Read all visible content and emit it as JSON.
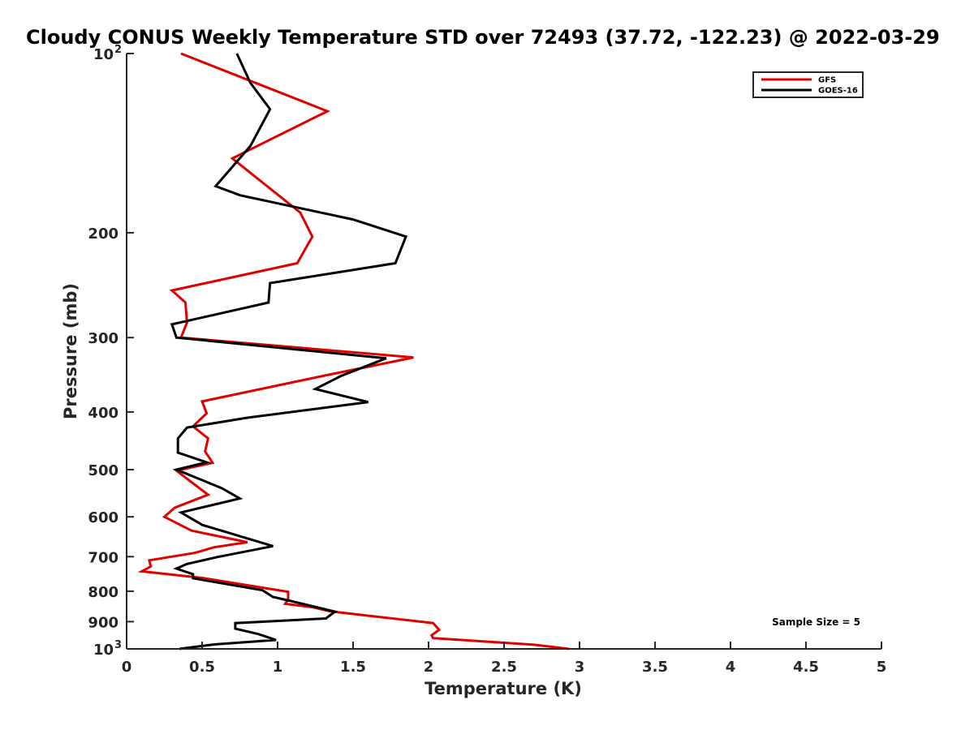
{
  "chart_data": {
    "type": "line",
    "title": "Cloudy CONUS Weekly Temperature STD over 72493 (37.72, -122.23) @ 2022-03-29",
    "xlabel": "Temperature (K)",
    "ylabel": "Pressure (mb)",
    "xlim": [
      0,
      5
    ],
    "ylim": [
      100,
      1000
    ],
    "yscale": "log",
    "y_reversed": true,
    "grid": false,
    "legend_position": "top-right",
    "x_ticks": [
      {
        "value": 0,
        "label": "0"
      },
      {
        "value": 0.5,
        "label": "0.5"
      },
      {
        "value": 1,
        "label": "1"
      },
      {
        "value": 1.5,
        "label": "1.5"
      },
      {
        "value": 2,
        "label": "2"
      },
      {
        "value": 2.5,
        "label": "2.5"
      },
      {
        "value": 3,
        "label": "3"
      },
      {
        "value": 3.5,
        "label": "3.5"
      },
      {
        "value": 4,
        "label": "4"
      },
      {
        "value": 4.5,
        "label": "4.5"
      },
      {
        "value": 5,
        "label": "5"
      }
    ],
    "y_ticks": [
      {
        "value": 100,
        "label": "10",
        "sup": "2"
      },
      {
        "value": 200,
        "label": "200"
      },
      {
        "value": 300,
        "label": "300"
      },
      {
        "value": 400,
        "label": "400"
      },
      {
        "value": 500,
        "label": "500"
      },
      {
        "value": 600,
        "label": "600"
      },
      {
        "value": 700,
        "label": "700"
      },
      {
        "value": 800,
        "label": "800"
      },
      {
        "value": 900,
        "label": "900"
      },
      {
        "value": 1000,
        "label": "10",
        "sup": "3"
      }
    ],
    "series": [
      {
        "name": "GFS",
        "color": "#e00000",
        "points": [
          [
            0.36,
            100
          ],
          [
            1.33,
            125
          ],
          [
            0.7,
            150
          ],
          [
            1.15,
            185
          ],
          [
            1.23,
            203
          ],
          [
            1.13,
            225
          ],
          [
            0.3,
            250
          ],
          [
            0.39,
            262
          ],
          [
            0.4,
            283
          ],
          [
            0.36,
            300
          ],
          [
            1.9,
            324
          ],
          [
            1.3,
            348
          ],
          [
            0.5,
            384
          ],
          [
            0.53,
            402
          ],
          [
            0.44,
            423
          ],
          [
            0.54,
            443
          ],
          [
            0.52,
            466
          ],
          [
            0.57,
            487
          ],
          [
            0.33,
            502
          ],
          [
            0.54,
            551
          ],
          [
            0.32,
            579
          ],
          [
            0.25,
            600
          ],
          [
            0.43,
            633
          ],
          [
            0.8,
            662
          ],
          [
            0.58,
            675
          ],
          [
            0.45,
            690
          ],
          [
            0.15,
            710
          ],
          [
            0.16,
            727
          ],
          [
            0.1,
            741
          ],
          [
            0.5,
            760
          ],
          [
            1.07,
            802
          ],
          [
            1.07,
            825
          ],
          [
            1.05,
            840
          ],
          [
            1.23,
            851
          ],
          [
            1.35,
            865
          ],
          [
            2.03,
            905
          ],
          [
            2.07,
            929
          ],
          [
            2.02,
            949
          ],
          [
            2.03,
            959
          ],
          [
            2.7,
            984
          ],
          [
            2.93,
            1000
          ]
        ]
      },
      {
        "name": "GOES-16",
        "color": "#000000",
        "points": [
          [
            0.73,
            100
          ],
          [
            0.82,
            112
          ],
          [
            0.95,
            124
          ],
          [
            0.82,
            143
          ],
          [
            0.59,
            167
          ],
          [
            0.75,
            173
          ],
          [
            1.5,
            190
          ],
          [
            1.85,
            203
          ],
          [
            1.78,
            225
          ],
          [
            0.95,
            243
          ],
          [
            0.94,
            262
          ],
          [
            0.3,
            285
          ],
          [
            0.33,
            300
          ],
          [
            1.72,
            325
          ],
          [
            1.42,
            348
          ],
          [
            1.25,
            366
          ],
          [
            1.6,
            385
          ],
          [
            0.8,
            409
          ],
          [
            0.4,
            425
          ],
          [
            0.34,
            443
          ],
          [
            0.34,
            468
          ],
          [
            0.53,
            486
          ],
          [
            0.33,
            500
          ],
          [
            0.63,
            537
          ],
          [
            0.75,
            559
          ],
          [
            0.36,
            590
          ],
          [
            0.5,
            619
          ],
          [
            0.97,
            672
          ],
          [
            0.6,
            701
          ],
          [
            0.4,
            720
          ],
          [
            0.33,
            733
          ],
          [
            0.44,
            749
          ],
          [
            0.44,
            761
          ],
          [
            0.9,
            797
          ],
          [
            0.97,
            818
          ],
          [
            1.08,
            830
          ],
          [
            1.38,
            866
          ],
          [
            1.32,
            889
          ],
          [
            0.72,
            905
          ],
          [
            0.72,
            925
          ],
          [
            0.87,
            944
          ],
          [
            0.99,
            966
          ],
          [
            0.58,
            983
          ],
          [
            0.35,
            1000
          ]
        ]
      }
    ],
    "annotations": [
      {
        "text": "Sample Size = 5",
        "position": "bottom-right"
      }
    ]
  }
}
